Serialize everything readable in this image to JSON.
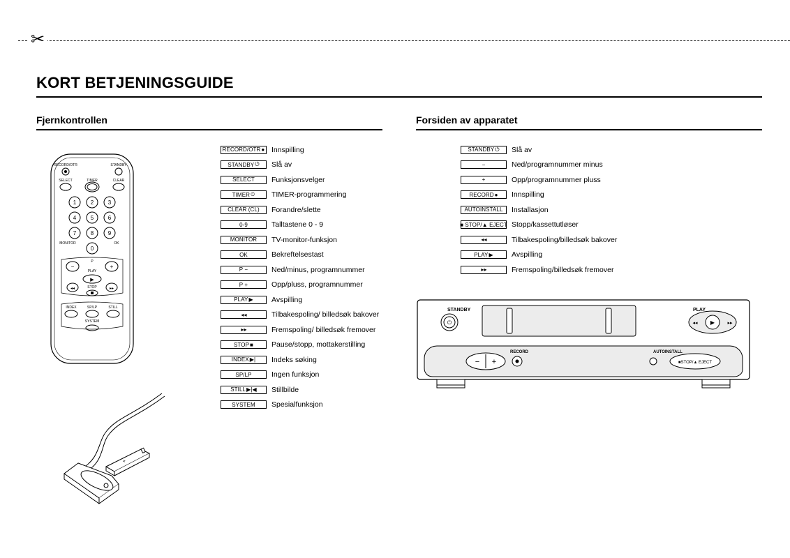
{
  "scissors_glyph": "✂",
  "title": "KORT BETJENINGSGUIDE",
  "left": {
    "heading": "Fjernkontrollen",
    "legend": [
      {
        "key": "RECORD/OTR",
        "icon": "●",
        "desc": "Innspilling"
      },
      {
        "key": "STANDBY",
        "icon": "⏻",
        "desc": "Slå av"
      },
      {
        "key": "SELECT",
        "icon": "",
        "desc": "Funksjonsvelger"
      },
      {
        "key": "TIMER",
        "icon": "⏲",
        "desc": "TIMER-programmering"
      },
      {
        "key": "CLEAR (CL)",
        "icon": "",
        "desc": "Forandre/slette"
      },
      {
        "key": "0-9",
        "icon": "",
        "desc": "Talltastene 0 - 9"
      },
      {
        "key": "MONITOR",
        "icon": "",
        "desc": "TV-monitor-funksjon"
      },
      {
        "key": "OK",
        "icon": "",
        "desc": "Bekreftelsestast"
      },
      {
        "key": "P −",
        "icon": "",
        "desc": "Ned/minus, programnummer"
      },
      {
        "key": "P +",
        "icon": "",
        "desc": "Opp/pluss, programnummer"
      },
      {
        "key": "PLAY",
        "icon": "▶",
        "desc": "Avspilling"
      },
      {
        "key": "",
        "icon": "◂◂",
        "desc": "Tilbakespoling/ billedsøk bakover"
      },
      {
        "key": "",
        "icon": "▸▸",
        "desc": "Fremspoling/ billedsøk fremover"
      },
      {
        "key": "STOP",
        "icon": "■",
        "desc": "Pause/stopp, mottakerstilling"
      },
      {
        "key": "INDEX",
        "icon": "▶|",
        "desc": "Indeks søking"
      },
      {
        "key": "SP/LP",
        "icon": "",
        "desc": "Ingen funksjon"
      },
      {
        "key": "STILL",
        "icon": "▶|◀",
        "desc": "Stillbilde"
      },
      {
        "key": "SYSTEM",
        "icon": "",
        "desc": "Spesialfunksjon"
      }
    ],
    "remote_labels": {
      "record_otr": "RECORD/OTR",
      "standby": "STANDBY",
      "select": "SELECT",
      "timer": "TIMER",
      "clear": "CLEAR",
      "monitor": "MONITOR",
      "ok": "OK",
      "p": "P",
      "play": "PLAY",
      "stop": "STOP",
      "index": "INDEX",
      "splp": "SP/LP",
      "still": "STILL",
      "system": "SYSTEM"
    }
  },
  "right": {
    "heading": "Forsiden av apparatet",
    "legend": [
      {
        "key": "STANDBY",
        "icon": "⏻",
        "desc": "Slå av"
      },
      {
        "key": "−",
        "icon": "",
        "desc": "Ned/programnummer minus"
      },
      {
        "key": "+",
        "icon": "",
        "desc": "Opp/programnummer pluss"
      },
      {
        "key": "RECORD",
        "icon": "●",
        "desc": "Innspilling"
      },
      {
        "key": "AUTOINSTALL",
        "icon": "",
        "desc": "Installasjon"
      },
      {
        "key": "■ STOP/▲ EJECT",
        "icon": "",
        "desc": "Stopp/kassettutløser"
      },
      {
        "key": "",
        "icon": "◂◂",
        "desc": "Tilbakespoling/billedsøk bakover"
      },
      {
        "key": "PLAY",
        "icon": "▶",
        "desc": "Avspilling"
      },
      {
        "key": "",
        "icon": "▸▸",
        "desc": "Fremspoling/billedsøk fremover"
      }
    ],
    "vcr_labels": {
      "standby": "STANDBY",
      "play": "PLAY",
      "record": "RECORD",
      "autoinstall": "AUTOINSTALL",
      "stop_eject": "■STOP/▲ EJECT"
    }
  },
  "colors": {
    "text": "#000000",
    "background": "#ffffff",
    "fill_grey": "#d9d9d9"
  }
}
